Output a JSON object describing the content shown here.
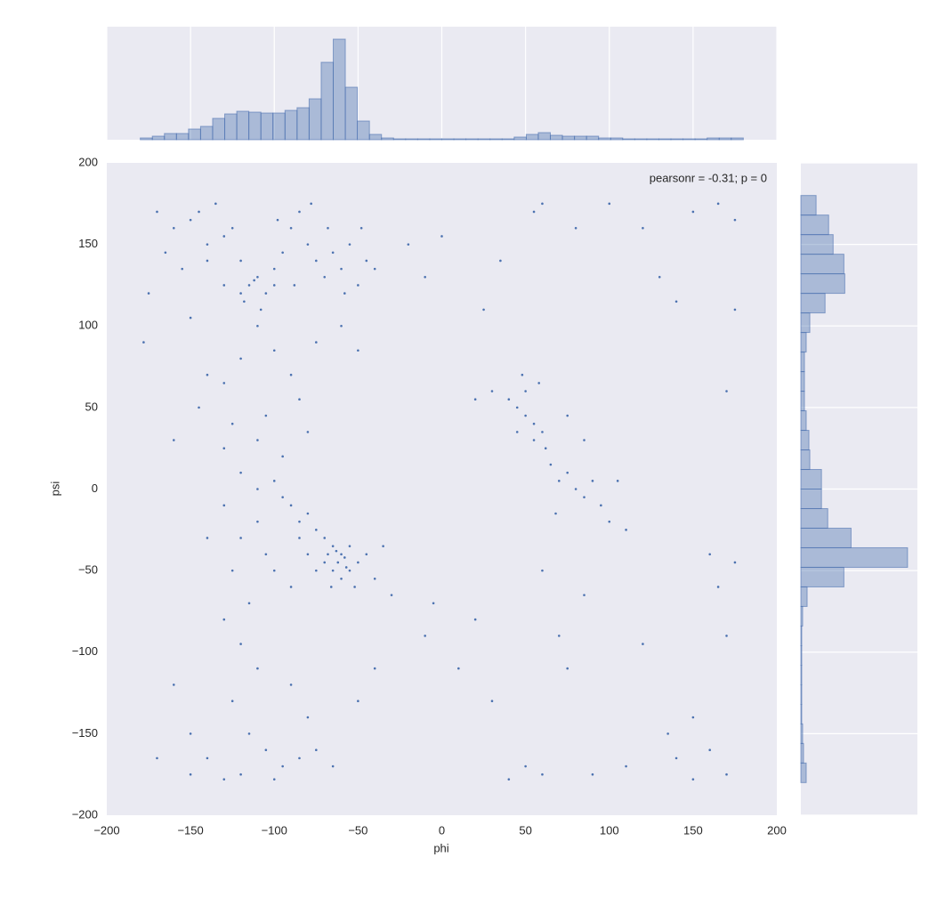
{
  "chart_data": [
    {
      "type": "scatter",
      "color": "#4c72b0",
      "xlabel": "phi",
      "ylabel": "psi",
      "annotation": "pearsonr = -0.31; p = 0",
      "grid": true,
      "xlim": [
        -200,
        200
      ],
      "ylim": [
        -200,
        200
      ],
      "xticks": [
        {
          "value": -200,
          "label": "−200"
        },
        {
          "value": -150,
          "label": "−150"
        },
        {
          "value": -100,
          "label": "−100"
        },
        {
          "value": -50,
          "label": "−50"
        },
        0,
        50,
        100,
        150,
        200
      ],
      "yticks": [
        {
          "value": -200,
          "label": "−200"
        },
        {
          "value": -150,
          "label": "−150"
        },
        {
          "value": -100,
          "label": "−100"
        },
        {
          "value": -50,
          "label": "−50"
        },
        0,
        50,
        100,
        150,
        200
      ],
      "x": [
        -170,
        -160,
        -150,
        -140,
        -130,
        -120,
        -115,
        -110,
        -105,
        -100,
        -95,
        -90,
        -85,
        -80,
        -75,
        -70,
        -65,
        -60,
        -55,
        -50,
        -45,
        -175,
        -165,
        -155,
        -145,
        -135,
        -125,
        -118,
        -108,
        -98,
        -88,
        -78,
        -68,
        -58,
        -48,
        -40,
        -130,
        -120,
        -112,
        -100,
        -140,
        -178,
        -150,
        -60,
        -50,
        -110,
        -140,
        -130,
        -120,
        -100,
        -90,
        -85,
        -75,
        -125,
        -110,
        -130,
        -105,
        -145,
        -95,
        -160,
        -80,
        -120,
        -110,
        -100,
        -95,
        -90,
        -85,
        -80,
        -75,
        -70,
        -65,
        -60,
        -62,
        -58,
        -55,
        -65,
        -68,
        -60,
        -55,
        -50,
        -70,
        -63,
        -57,
        -66,
        -52,
        -45,
        -40,
        -75,
        -80,
        -85,
        -110,
        -120,
        -130,
        -140,
        -100,
        -90,
        -35,
        -30,
        -125,
        -115,
        -105,
        -130,
        -120,
        -110,
        -125,
        -115,
        -105,
        -95,
        -85,
        -75,
        -140,
        -150,
        -130,
        -120,
        -100,
        -80,
        -170,
        -160,
        -65,
        -50,
        -40,
        -150,
        -90,
        40,
        45,
        50,
        55,
        60,
        50,
        55,
        62,
        65,
        70,
        75,
        80,
        85,
        90,
        95,
        100,
        48,
        58,
        45,
        68,
        105,
        110,
        30,
        20,
        75,
        85,
        55,
        60,
        80,
        100,
        120,
        150,
        165,
        175,
        175,
        130,
        140,
        170,
        160,
        165,
        170,
        175,
        60,
        70,
        85,
        120,
        150,
        160,
        170,
        150,
        50,
        60,
        40,
        75,
        20,
        30,
        10,
        -10,
        -5,
        140,
        90,
        110,
        135,
        -20,
        -10,
        0,
        35,
        25
      ],
      "values": [
        170,
        160,
        165,
        150,
        155,
        140,
        125,
        130,
        120,
        135,
        145,
        160,
        170,
        150,
        140,
        130,
        145,
        135,
        150,
        125,
        140,
        120,
        145,
        135,
        170,
        175,
        160,
        115,
        110,
        165,
        125,
        175,
        160,
        120,
        160,
        135,
        125,
        120,
        128,
        125,
        140,
        90,
        105,
        100,
        85,
        100,
        70,
        65,
        80,
        85,
        70,
        55,
        90,
        40,
        30,
        25,
        45,
        50,
        20,
        30,
        35,
        10,
        0,
        5,
        -5,
        -10,
        -20,
        -15,
        -25,
        -30,
        -35,
        -40,
        -45,
        -42,
        -50,
        -50,
        -40,
        -55,
        -35,
        -45,
        -45,
        -38,
        -48,
        -60,
        -60,
        -40,
        -55,
        -50,
        -40,
        -30,
        -20,
        -30,
        -10,
        -30,
        -50,
        -60,
        -35,
        -65,
        -50,
        -70,
        -40,
        -80,
        -95,
        -110,
        -130,
        -150,
        -160,
        -170,
        -165,
        -160,
        -165,
        -175,
        -178,
        -175,
        -178,
        -140,
        -165,
        -120,
        -170,
        -130,
        -110,
        -150,
        -120,
        55,
        50,
        45,
        40,
        35,
        60,
        30,
        25,
        15,
        5,
        10,
        0,
        -5,
        5,
        -10,
        -20,
        70,
        65,
        35,
        -15,
        5,
        -25,
        60,
        55,
        45,
        30,
        170,
        175,
        160,
        175,
        160,
        170,
        175,
        165,
        110,
        130,
        115,
        60,
        -40,
        -60,
        -90,
        -45,
        -50,
        -90,
        -65,
        -95,
        -140,
        -160,
        -175,
        -178,
        -170,
        -175,
        -178,
        -110,
        -80,
        -130,
        -110,
        -90,
        -70,
        -165,
        -175,
        -170,
        -150,
        150,
        130,
        155,
        140,
        110
      ]
    },
    {
      "type": "histogram",
      "orientation": "vertical",
      "color": "#4c72b0",
      "grid": true,
      "xlim": [
        -200,
        200
      ],
      "ylim": [
        0,
        127
      ],
      "xticks": [
        -200,
        -150,
        -100,
        -50,
        0,
        50,
        100,
        150,
        200
      ],
      "bins": [
        -180,
        -172.8,
        -165.6,
        -158.4,
        -151.2,
        -144,
        -136.8,
        -129.6,
        -122.4,
        -115.2,
        -108,
        -100.8,
        -93.6,
        -86.4,
        -79.2,
        -72,
        -64.8,
        -57.6,
        -50.4,
        -43.2,
        -36,
        -28.8,
        -21.6,
        -14.4,
        -7.2,
        0,
        7.2,
        14.4,
        21.6,
        28.8,
        36,
        43.2,
        50.4,
        57.6,
        64.8,
        72,
        79.2,
        86.4,
        93.6,
        100.8,
        108,
        115.2,
        122.4,
        129.6,
        136.8,
        144,
        151.2,
        158.4,
        165.6,
        172.8,
        180
      ],
      "values": [
        2,
        4,
        7,
        7,
        12,
        15,
        24,
        29,
        32,
        31,
        30,
        30,
        33,
        36,
        46,
        87,
        113,
        59,
        21,
        6,
        2,
        1,
        1,
        1,
        1,
        1,
        1,
        1,
        1,
        1,
        1,
        3,
        6,
        8,
        5,
        4,
        4,
        4,
        2,
        2,
        1,
        1,
        1,
        1,
        1,
        1,
        1,
        2,
        2,
        2
      ]
    },
    {
      "type": "histogram",
      "orientation": "horizontal",
      "color": "#4c72b0",
      "grid": true,
      "ylim": [
        -200,
        200
      ],
      "xlim": [
        0,
        130
      ],
      "yticks": [
        -200,
        -150,
        -100,
        -50,
        0,
        50,
        100,
        150,
        200
      ],
      "bins": [
        -180,
        -168,
        -156,
        -144,
        -132,
        -120,
        -108,
        -96,
        -84,
        -72,
        -60,
        -48,
        -36,
        -24,
        -12,
        0,
        12,
        24,
        36,
        48,
        60,
        72,
        84,
        96,
        108,
        120,
        132,
        144,
        156,
        168,
        180
      ],
      "values": [
        6,
        3,
        2,
        1,
        1,
        1,
        1,
        1,
        2,
        7,
        48,
        119,
        56,
        30,
        23,
        23,
        10,
        9,
        6,
        4,
        4,
        4,
        6,
        10,
        27,
        49,
        48,
        36,
        31,
        17
      ]
    }
  ]
}
